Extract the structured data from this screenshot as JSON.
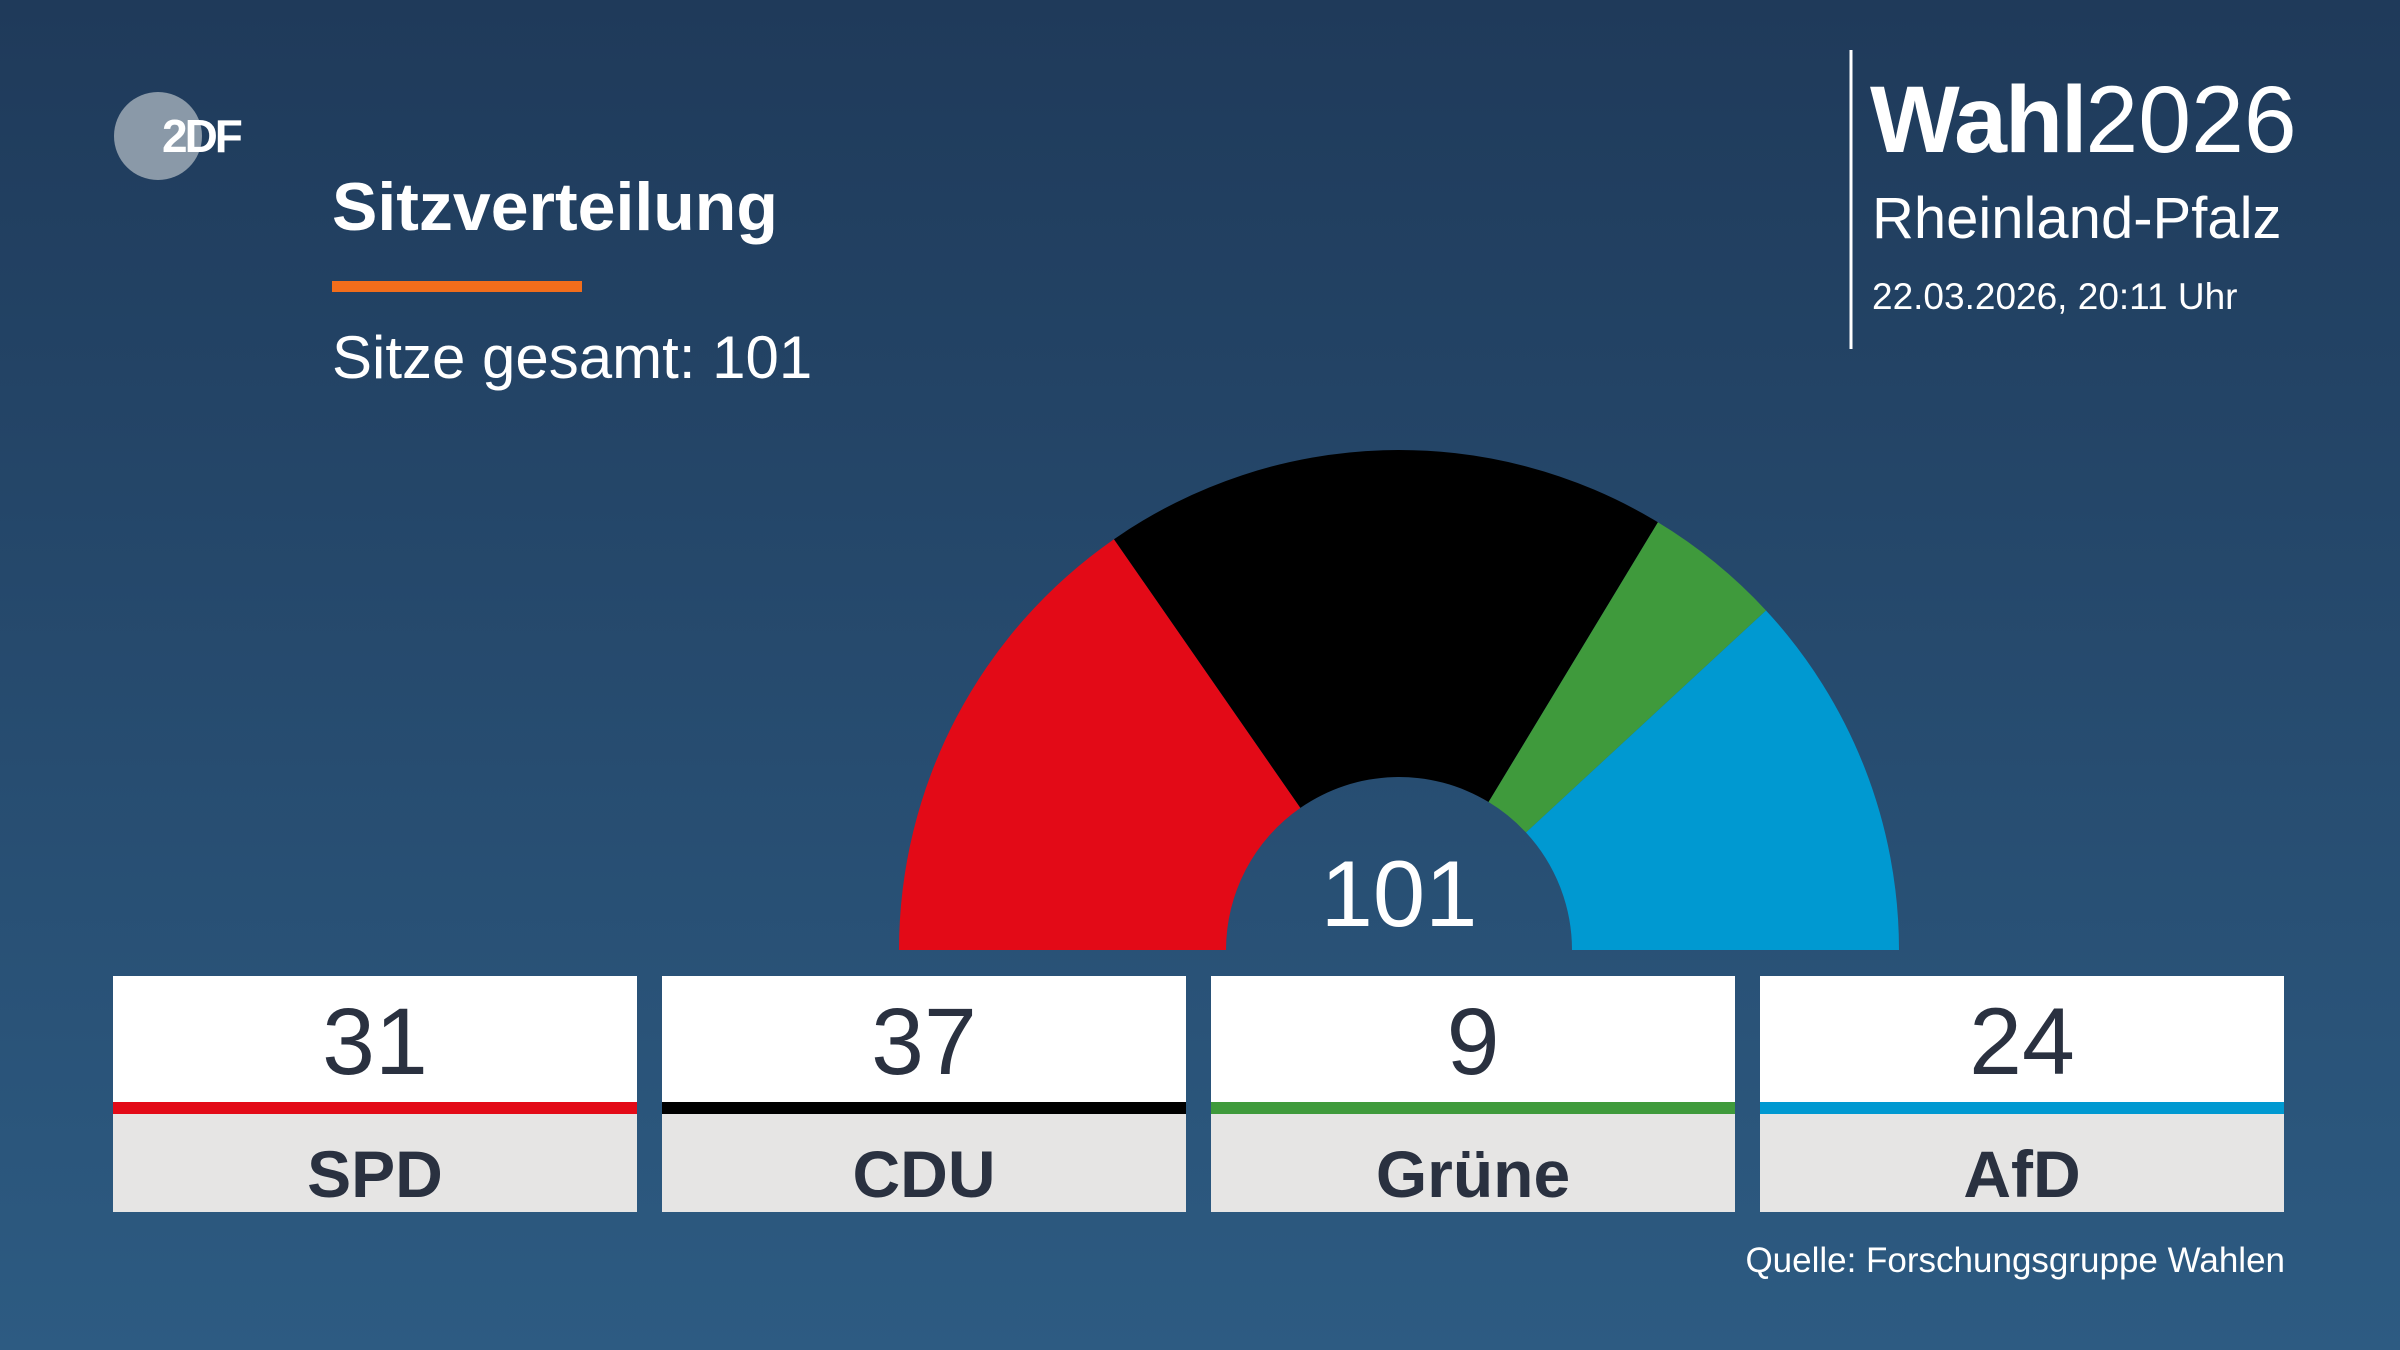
{
  "chart_data": {
    "type": "parliament",
    "logo": "2DF",
    "title": "Sitzverteilung",
    "subtitle": "Sitze gesamt: 101",
    "brand_bold": "Wahl",
    "brand_year": "2026",
    "region": "Rheinland-Pfalz",
    "date": "22.03.2026, 20:11 Uhr",
    "total": 101,
    "categories": [
      "SPD",
      "CDU",
      "Grüne",
      "AfD"
    ],
    "values": [
      31,
      37,
      9,
      24
    ],
    "colors": [
      "#e30a17",
      "#000000",
      "#3f9a3c",
      "#0099d1"
    ],
    "source": "Quelle: Forschungsgruppe Wahlen"
  }
}
